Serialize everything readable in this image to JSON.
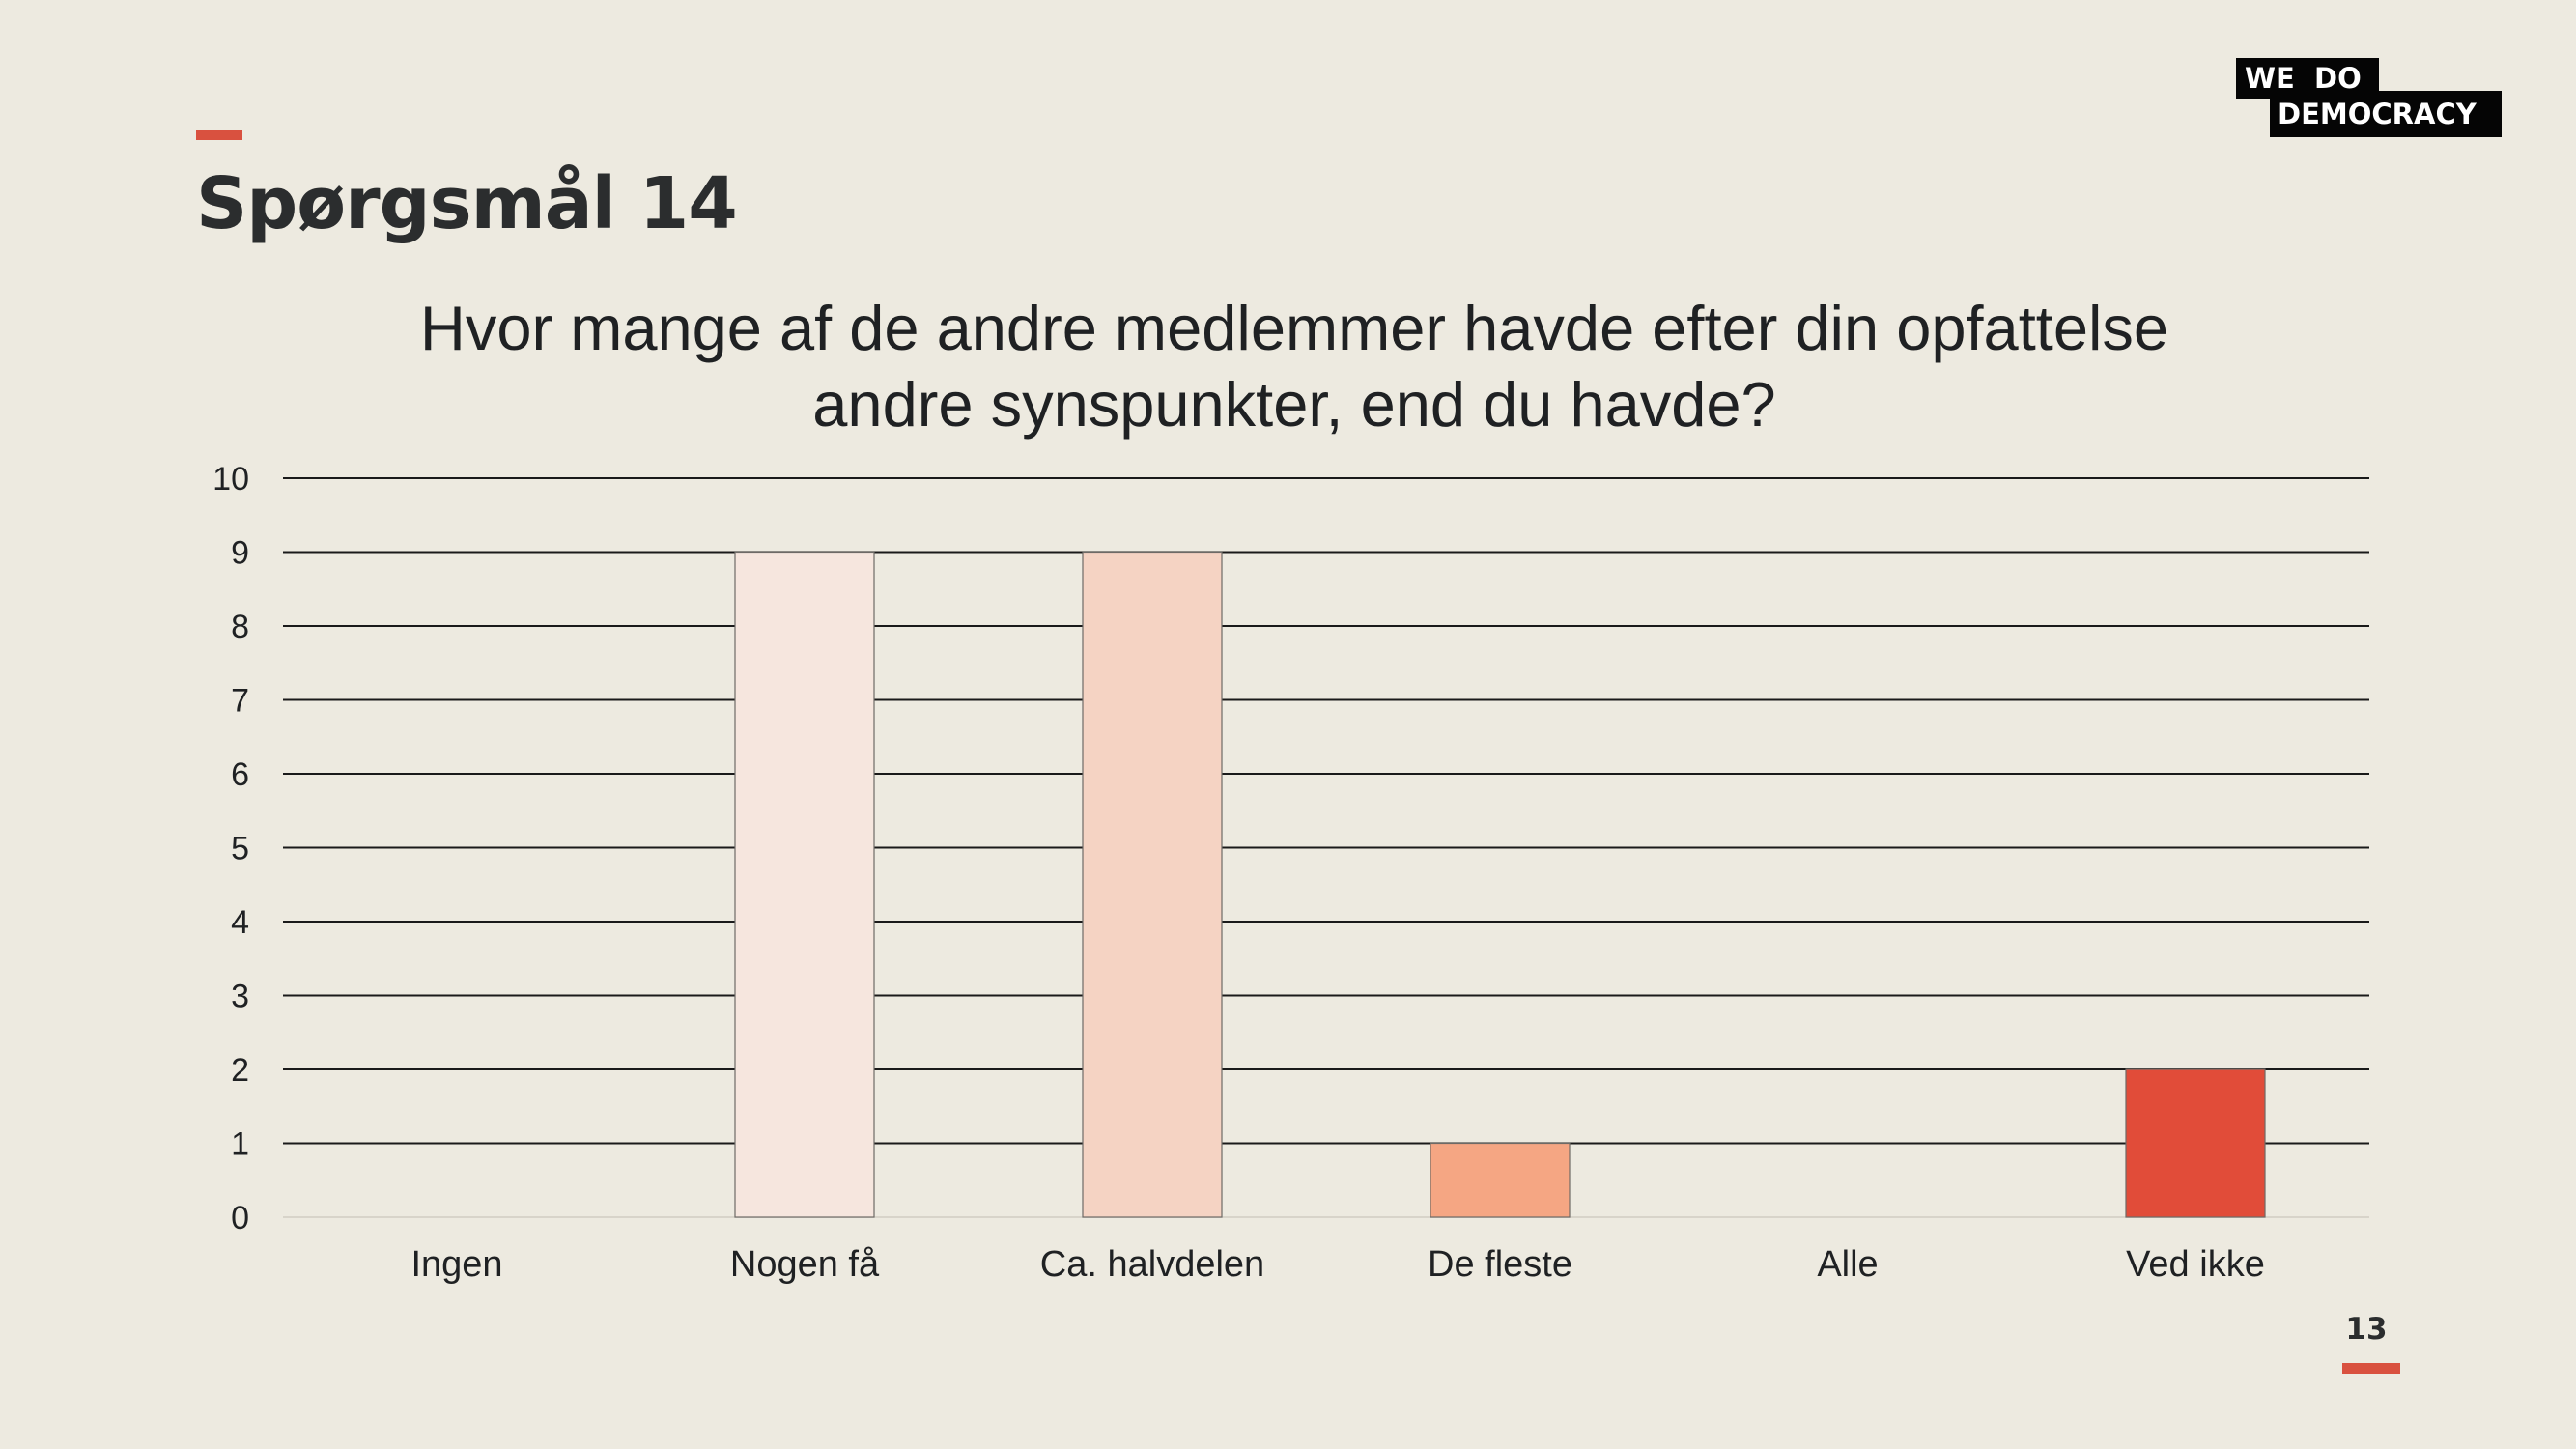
{
  "slide": {
    "title": "Spørgsmål 14",
    "page_number": "13"
  },
  "logo": {
    "line1": "WE  DO",
    "line2": "DEMOCRACY"
  },
  "colors": {
    "background": "#edeae0",
    "accent": "#d9513f",
    "gridline": "#1a1a1a"
  },
  "chart_data": {
    "type": "bar",
    "title": "Hvor mange af de andre medlemmer havde efter din opfattelse andre synspunkter, end du havde?",
    "categories": [
      "Ingen",
      "Nogen få",
      "Ca. halvdelen",
      "De fleste",
      "Alle",
      "Ved ikke"
    ],
    "values": [
      0,
      9,
      9,
      1,
      0,
      2
    ],
    "bar_colors": [
      "#f6e6de",
      "#f6e6de",
      "#f5d3c3",
      "#f5a683",
      "#f4cbb5",
      "#e14c39"
    ],
    "ylim": [
      0,
      10
    ],
    "yticks": [
      0,
      1,
      2,
      3,
      4,
      5,
      6,
      7,
      8,
      9,
      10
    ],
    "xlabel": "",
    "ylabel": "",
    "grid": true,
    "legend": "none"
  }
}
